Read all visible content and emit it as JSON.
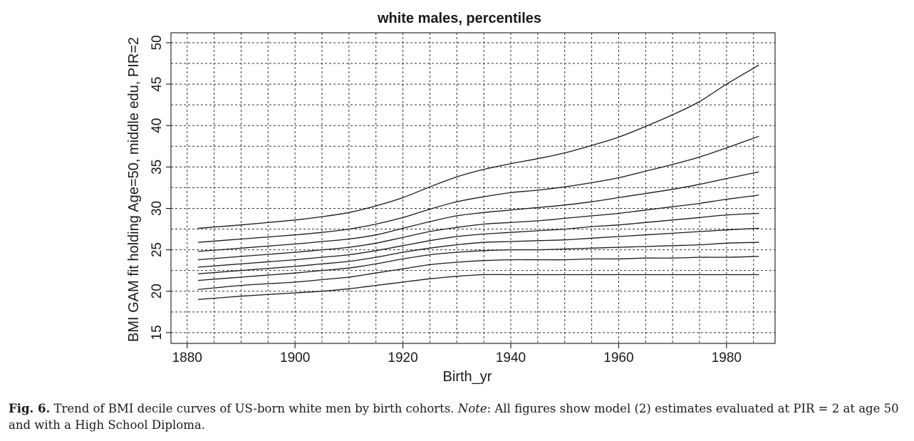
{
  "chart_data": {
    "type": "line",
    "title": "white males, percentiles",
    "xlabel": "Birth_yr",
    "ylabel": "BMI GAM fit holding Age=50, middle edu, PIR=2",
    "xlim": [
      1877,
      1989
    ],
    "ylim": [
      13.7,
      51.2
    ],
    "xticks": [
      1880,
      1900,
      1920,
      1940,
      1960,
      1980
    ],
    "yticks": [
      15,
      20,
      25,
      30,
      35,
      40,
      45,
      50
    ],
    "grid": true,
    "x": [
      1882,
      1890,
      1900,
      1905,
      1910,
      1915,
      1920,
      1925,
      1930,
      1935,
      1940,
      1945,
      1950,
      1955,
      1960,
      1965,
      1970,
      1975,
      1980,
      1986
    ],
    "series": [
      {
        "values": [
          19.0,
          19.4,
          19.8,
          20.0,
          20.3,
          20.7,
          21.1,
          21.5,
          21.8,
          22.0,
          22.0,
          22.0,
          22.0,
          22.0,
          22.0,
          22.0,
          22.0,
          22.0,
          22.0,
          22.0
        ]
      },
      {
        "values": [
          20.2,
          20.7,
          21.1,
          21.4,
          21.7,
          22.2,
          22.7,
          23.2,
          23.5,
          23.7,
          23.8,
          23.8,
          23.8,
          23.9,
          23.9,
          24.0,
          24.0,
          24.1,
          24.1,
          24.2
        ]
      },
      {
        "values": [
          21.3,
          21.7,
          22.2,
          22.5,
          22.8,
          23.3,
          23.9,
          24.4,
          24.7,
          24.9,
          25.0,
          25.0,
          25.1,
          25.2,
          25.3,
          25.4,
          25.5,
          25.6,
          25.8,
          25.9
        ]
      },
      {
        "values": [
          22.1,
          22.5,
          23.0,
          23.3,
          23.6,
          24.1,
          24.7,
          25.2,
          25.6,
          25.9,
          26.0,
          26.1,
          26.2,
          26.4,
          26.6,
          26.8,
          27.0,
          27.2,
          27.4,
          27.6
        ]
      },
      {
        "values": [
          22.9,
          23.3,
          23.8,
          24.1,
          24.4,
          24.9,
          25.5,
          26.1,
          26.6,
          26.9,
          27.1,
          27.3,
          27.5,
          27.8,
          28.0,
          28.3,
          28.6,
          28.9,
          29.2,
          29.4
        ]
      },
      {
        "values": [
          23.8,
          24.2,
          24.7,
          25.0,
          25.3,
          25.8,
          26.5,
          27.2,
          27.7,
          28.1,
          28.3,
          28.5,
          28.8,
          29.1,
          29.4,
          29.8,
          30.2,
          30.6,
          31.1,
          31.6
        ]
      },
      {
        "values": [
          24.8,
          25.2,
          25.7,
          26.0,
          26.3,
          26.8,
          27.6,
          28.4,
          29.1,
          29.5,
          29.8,
          30.1,
          30.4,
          30.8,
          31.3,
          31.8,
          32.3,
          32.9,
          33.6,
          34.4
        ]
      },
      {
        "values": [
          25.9,
          26.3,
          26.8,
          27.1,
          27.5,
          28.1,
          28.9,
          29.9,
          30.8,
          31.4,
          31.9,
          32.2,
          32.6,
          33.1,
          33.7,
          34.5,
          35.3,
          36.2,
          37.3,
          38.7
        ]
      },
      {
        "values": [
          27.6,
          28.0,
          28.6,
          29.0,
          29.5,
          30.3,
          31.3,
          32.6,
          33.8,
          34.7,
          35.4,
          36.0,
          36.7,
          37.6,
          38.6,
          39.9,
          41.3,
          42.9,
          45.0,
          47.3
        ]
      }
    ]
  },
  "caption": {
    "fig_label": "Fig. 6.",
    "text_before_note": " Trend of BMI decile curves of US-born white men by birth cohorts. ",
    "note_label": "Note",
    "text_after_note": ": All figures show model (2) estimates evaluated at PIR = 2 at age 50 and with a High School Diploma."
  }
}
